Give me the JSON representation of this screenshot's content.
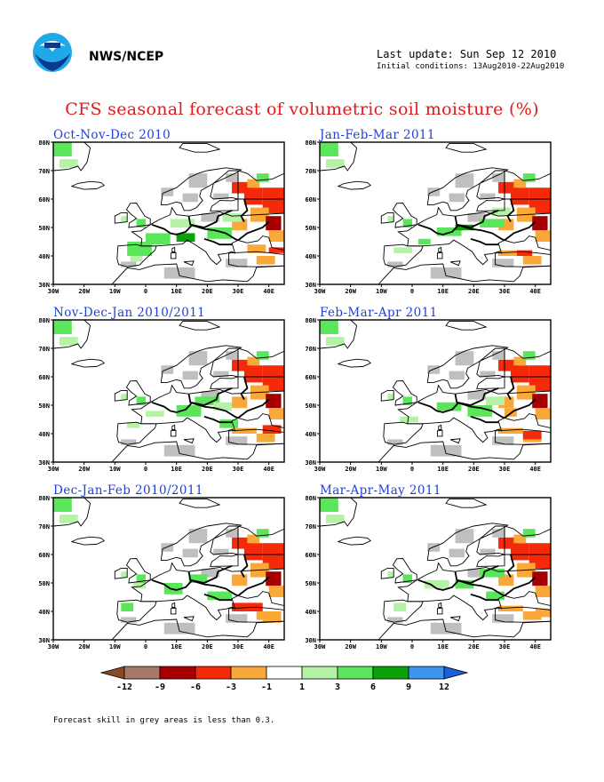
{
  "header": {
    "org": "NWS/NCEP",
    "last_update": "Last update: Sun Sep 12 2010",
    "initial_conditions": "Initial conditions: 13Aug2010-22Aug2010",
    "logo_icon": "noaa-logo-icon"
  },
  "title": "CFS seasonal forecast of volumetric soil moisture (%)",
  "panels": [
    {
      "title": "Oct-Nov-Dec 2010"
    },
    {
      "title": "Jan-Feb-Mar 2011"
    },
    {
      "title": "Nov-Dec-Jan 2010/2011"
    },
    {
      "title": "Feb-Mar-Apr 2011"
    },
    {
      "title": "Dec-Jan-Feb 2010/2011"
    },
    {
      "title": "Mar-Apr-May 2011"
    }
  ],
  "axes": {
    "lat_labels": [
      "80N",
      "70N",
      "60N",
      "50N",
      "40N",
      "30N"
    ],
    "lon_labels": [
      "30W",
      "20W",
      "10W",
      "0",
      "10E",
      "20E",
      "30E",
      "40E"
    ]
  },
  "legend": {
    "labels": [
      "-12",
      "-9",
      "-6",
      "-3",
      "-1",
      "1",
      "3",
      "6",
      "9",
      "12"
    ],
    "colors": [
      "#8a4a2a",
      "#a87968",
      "#a80000",
      "#f52a0a",
      "#f9a83a",
      "#ffffff",
      "#b5f2a6",
      "#5be55a",
      "#0aa10a",
      "#3d96ee",
      "#1d5fd6"
    ]
  },
  "note": "Forecast skill in grey areas is less than 0.3."
}
